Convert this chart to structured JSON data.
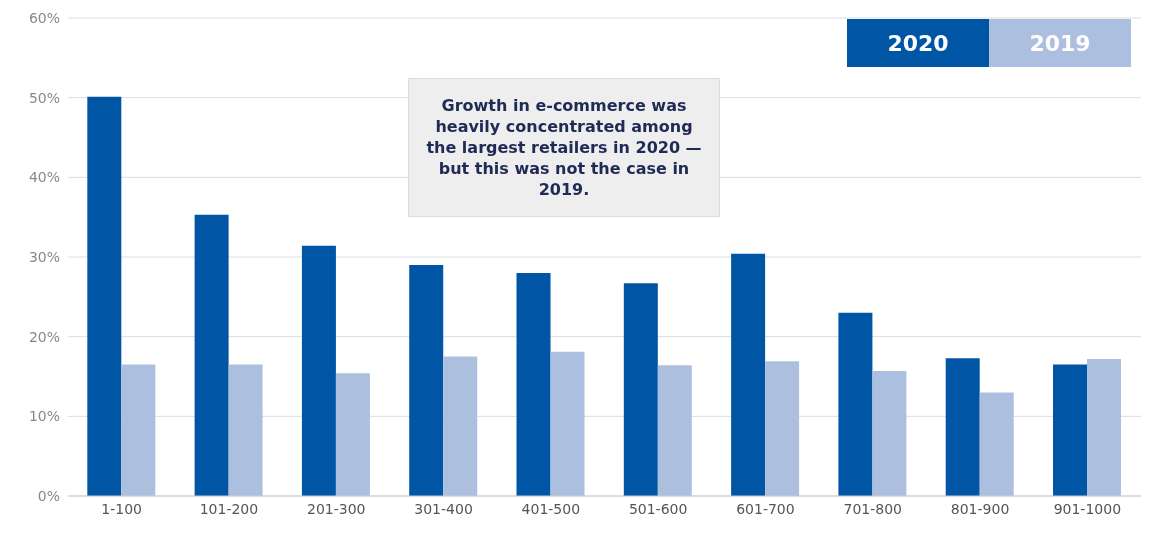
{
  "chart_data": {
    "type": "bar",
    "categories": [
      "1-100",
      "101-200",
      "201-300",
      "301-400",
      "401-500",
      "501-600",
      "601-700",
      "701-800",
      "801-900",
      "901-1000"
    ],
    "series": [
      {
        "name": "2020",
        "color": "#0055a5",
        "values": [
          50.1,
          35.3,
          31.4,
          29.0,
          28.0,
          26.7,
          30.4,
          23.0,
          17.3,
          16.5
        ]
      },
      {
        "name": "2019",
        "color": "#adbfdf",
        "values": [
          16.5,
          16.5,
          15.4,
          17.5,
          18.1,
          16.4,
          16.9,
          15.7,
          13.0,
          17.2
        ]
      }
    ],
    "ylim": [
      0,
      60
    ],
    "yticks": [
      {
        "value": 0,
        "label": "0%"
      },
      {
        "value": 10,
        "label": "10%"
      },
      {
        "value": 20,
        "label": "20%"
      },
      {
        "value": 30,
        "label": "30%"
      },
      {
        "value": 40,
        "label": "40%"
      },
      {
        "value": 50,
        "label": "50%"
      },
      {
        "value": 60,
        "label": "60%"
      }
    ],
    "grid": "y",
    "legend": "top right",
    "annotations": [
      "Growth in e-commerce was heavily concentrated among the largest retailers in 2020 — but this was not the case in 2019."
    ]
  }
}
